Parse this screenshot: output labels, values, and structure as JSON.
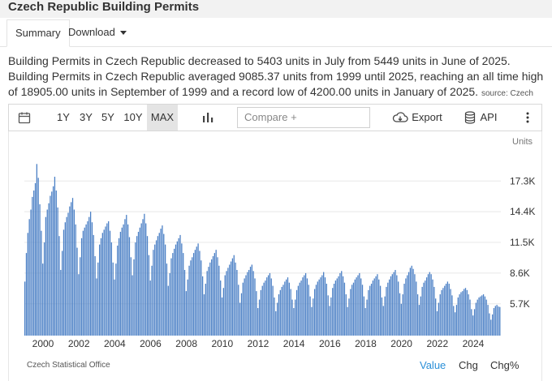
{
  "page": {
    "title": "Czech Republic Building Permits"
  },
  "tabs": {
    "summary": "Summary",
    "download": "Download"
  },
  "description": {
    "text": "Building Permits in Czech Republic decreased to 5403 units in July from 5449 units in June of 2025. Building Permits in Czech Republic averaged 9085.37 units from 1999 until 2025, reaching an all time high of 18905.00 units in September of 1999 and a record low of 4200.00 units in January of 2025.",
    "source": "source: Czech Statistical Office"
  },
  "toolbar": {
    "ranges": [
      "1Y",
      "3Y",
      "5Y",
      "10Y",
      "MAX"
    ],
    "selected_range": "MAX",
    "compare_placeholder": "Compare +",
    "export_label": "Export",
    "api_label": "API",
    "icons": [
      "calendar-icon",
      "bar-chart-icon",
      "cloud-download-icon",
      "database-icon",
      "more-vertical-icon"
    ]
  },
  "footer": {
    "source": "Czech Statistical Office",
    "value_label": "Value",
    "chg_label": "Chg",
    "chg_pct_label": "Chg%"
  },
  "colors": {
    "bar": "#4a7fc5",
    "accent": "#2a8fd8",
    "grid": "#e8e8e8"
  },
  "chart_data": {
    "type": "bar",
    "units_label": "Units",
    "y_ticks": [
      "5.7K",
      "8.6K",
      "11.5K",
      "14.4K",
      "17.3K"
    ],
    "y_tick_values": [
      5700,
      8600,
      11500,
      14400,
      17300
    ],
    "ylim": [
      2700,
      20000
    ],
    "x_ticks": [
      "2000",
      "2002",
      "2004",
      "2006",
      "2008",
      "2010",
      "2012",
      "2014",
      "2016",
      "2018",
      "2020",
      "2022",
      "2024"
    ],
    "start": "1999-01",
    "end": "2025-07",
    "series": [
      {
        "values": [
          7800,
          10500,
          12400,
          13700,
          14600,
          15800,
          16400,
          17100,
          18905,
          17600,
          15100,
          12600,
          9500,
          11500,
          13900,
          14600,
          15200,
          15900,
          16300,
          16800,
          17700,
          16400,
          14800,
          12100,
          8900,
          10700,
          12700,
          13400,
          13900,
          14300,
          14900,
          15300,
          15700,
          14600,
          13200,
          11000,
          8500,
          10100,
          11900,
          12600,
          12900,
          13200,
          13500,
          13900,
          14400,
          13400,
          12200,
          10200,
          8100,
          9600,
          11300,
          11900,
          12400,
          12700,
          13000,
          13300,
          13500,
          12600,
          11500,
          9600,
          8000,
          9500,
          11200,
          11900,
          12500,
          12900,
          13200,
          13700,
          14100,
          13200,
          12000,
          10100,
          8400,
          9900,
          11500,
          12100,
          12500,
          12900,
          13300,
          13700,
          14200,
          13300,
          12100,
          10300,
          7900,
          9300,
          10800,
          11300,
          11700,
          12100,
          12400,
          12800,
          13100,
          12300,
          11300,
          9500,
          7400,
          8600,
          10000,
          10500,
          10900,
          11300,
          11600,
          11900,
          12200,
          11400,
          10500,
          8900,
          6900,
          8000,
          9300,
          9800,
          10100,
          10500,
          10800,
          11100,
          11400,
          10700,
          9800,
          8300,
          6600,
          7600,
          8800,
          9200,
          9600,
          9900,
          10200,
          10500,
          10800,
          10100,
          9300,
          7900,
          6300,
          7200,
          8400,
          8800,
          9100,
          9400,
          9700,
          10000,
          10300,
          9600,
          8900,
          7500,
          5800,
          6700,
          7700,
          8100,
          8400,
          8700,
          8900,
          9200,
          9400,
          8800,
          8100,
          6900,
          5300,
          6100,
          7000,
          7400,
          7700,
          7900,
          8200,
          8400,
          8600,
          8100,
          7400,
          6300,
          5000,
          5800,
          6600,
          7000,
          7300,
          7500,
          7800,
          8000,
          8200,
          7700,
          7100,
          6100,
          5300,
          6100,
          7000,
          7400,
          7700,
          7900,
          8200,
          8400,
          8600,
          8100,
          7500,
          6400,
          5400,
          6200,
          7100,
          7500,
          7800,
          8000,
          8200,
          8400,
          8700,
          8200,
          7600,
          6500,
          5500,
          6300,
          7200,
          7600,
          7900,
          8100,
          8300,
          8600,
          8800,
          8300,
          7700,
          6600,
          5400,
          6200,
          7100,
          7500,
          7700,
          8000,
          8200,
          8400,
          8600,
          8100,
          7500,
          6400,
          5300,
          6100,
          7000,
          7400,
          7600,
          7900,
          8100,
          8300,
          8500,
          8000,
          7400,
          6300,
          5500,
          6400,
          7300,
          7700,
          8000,
          8300,
          8500,
          8700,
          8900,
          8400,
          7800,
          6700,
          5700,
          6600,
          7600,
          8100,
          8400,
          8700,
          9100,
          9300,
          9000,
          8500,
          7800,
          6600,
          5600,
          6400,
          7300,
          7700,
          7900,
          8200,
          8500,
          8700,
          8500,
          8000,
          7300,
          6200,
          5000,
          5800,
          6600,
          7000,
          7200,
          7400,
          7600,
          7800,
          7600,
          7100,
          6500,
          5500,
          4900,
          5600,
          6300,
          6600,
          6800,
          6900,
          7100,
          7200,
          7000,
          6600,
          6100,
          5200,
          4600,
          5200,
          5800,
          6100,
          6300,
          6400,
          6500,
          6600,
          6400,
          6100,
          5600,
          4800,
          4200,
          4700,
          5300,
          5500,
          5600,
          5449,
          5403
        ]
      }
    ]
  }
}
